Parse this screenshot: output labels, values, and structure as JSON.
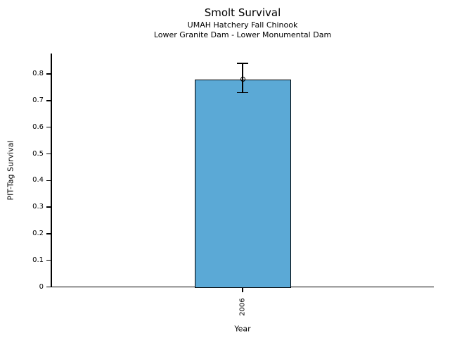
{
  "figure": {
    "title": "Smolt Survival",
    "subtitle_line1": "UMAH Hatchery Fall Chinook",
    "subtitle_line2": "Lower Granite Dam - Lower Monumental Dam"
  },
  "chart_data": {
    "type": "bar",
    "title": "Smolt Survival",
    "subtitle": [
      "UMAH Hatchery Fall Chinook",
      "Lower Granite Dam - Lower Monumental Dam"
    ],
    "xlabel": "Year",
    "ylabel": "PIT-Tag Survival",
    "categories": [
      "2006"
    ],
    "values": [
      0.78
    ],
    "error_bars": {
      "upper": [
        0.84
      ],
      "lower": [
        0.73
      ]
    },
    "yticks": [
      0,
      0.1,
      0.2,
      0.3,
      0.4,
      0.5,
      0.6,
      0.7,
      0.8
    ],
    "ytick_labels": [
      "0",
      "0.1",
      "0.2",
      "0.3",
      "0.4",
      "0.5",
      "0.6",
      "0.7",
      "0.8"
    ],
    "ylim": [
      0,
      0.877
    ],
    "grid": false,
    "legend": false,
    "bar_color": "#5BA9D6",
    "bar_edge_color": "#000000",
    "marker": "open-circle",
    "marker_position": "at-bar-top"
  }
}
